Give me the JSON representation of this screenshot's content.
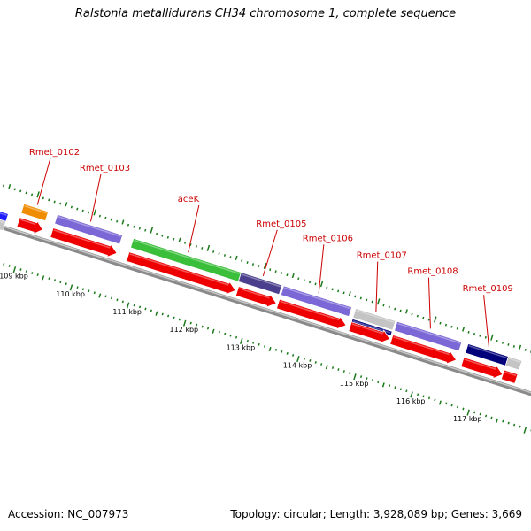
{
  "title": "Ralstonia metallidurans CH34 chromosome 1, complete sequence",
  "footer": {
    "accession": "Accession: NC_007973",
    "summary": "Topology: circular; Length: 3,928,089 bp; Genes: 3,669"
  },
  "view": {
    "start_kbp": 108.55,
    "end_kbp": 117.45
  },
  "colors": {
    "backbone": "#8a8a8a",
    "backbone_light": "#c8c8c8",
    "gene_label": "#cc0000",
    "tick": "#1a7a1a",
    "cds": "#ee0000",
    "violet": "#7b68d6",
    "green": "#3bbf3b",
    "darkslate": "#4a3f8c",
    "navy": "#00007a",
    "orange": "#f08c00",
    "grey": "#c4c4c4",
    "blue": "#1d1dff"
  },
  "kbp_labels": [
    "109 kbp",
    "110 kbp",
    "111 kbp",
    "112 kbp",
    "113 kbp",
    "114 kbp",
    "115 kbp",
    "116 kbp",
    "117 kbp"
  ],
  "kbp_values": [
    109,
    110,
    111,
    112,
    113,
    114,
    115,
    116,
    117
  ],
  "genes": [
    {
      "label": "Rmet_0102",
      "start": 108.82,
      "end": 109.25,
      "anchor": 109.04,
      "label_kbp": 108.93
    },
    {
      "label": "Rmet_0103",
      "start": 109.41,
      "end": 110.56,
      "anchor": 109.98,
      "label_kbp": 109.82
    },
    {
      "label": "aceK",
      "start": 110.75,
      "end": 112.65,
      "anchor": 111.7,
      "label_kbp": 111.55
    },
    {
      "label": "Rmet_0105",
      "start": 112.68,
      "end": 113.37,
      "anchor": 113.02,
      "label_kbp": 112.93
    },
    {
      "label": "Rmet_0106",
      "start": 113.4,
      "end": 114.6,
      "anchor": 114.0,
      "label_kbp": 113.75
    },
    {
      "label": "Rmet_0107",
      "start": 114.67,
      "end": 115.37,
      "anchor": 115.01,
      "label_kbp": 114.7
    },
    {
      "label": "Rmet_0108",
      "start": 115.4,
      "end": 116.54,
      "anchor": 115.97,
      "label_kbp": 115.6
    },
    {
      "label": "Rmet_0109",
      "start": 116.65,
      "end": 117.36,
      "anchor": 117.0,
      "label_kbp": 116.57
    }
  ],
  "features": [
    {
      "start": 108.4,
      "end": 108.62,
      "strand": 1,
      "color": "blue"
    },
    {
      "start": 108.4,
      "end": 108.62,
      "strand": 0,
      "color": "grey"
    },
    {
      "start": 108.82,
      "end": 109.25,
      "strand": 2,
      "color": "orange"
    },
    {
      "start": 108.82,
      "end": 109.25,
      "strand": 1,
      "color": "cds",
      "arrow": true
    },
    {
      "start": 109.41,
      "end": 110.56,
      "strand": 2,
      "color": "violet"
    },
    {
      "start": 109.41,
      "end": 110.56,
      "strand": 1,
      "color": "cds",
      "arrow": true
    },
    {
      "start": 110.75,
      "end": 112.65,
      "strand": 2,
      "color": "green"
    },
    {
      "start": 110.75,
      "end": 112.65,
      "strand": 1,
      "color": "cds",
      "arrow": true
    },
    {
      "start": 112.65,
      "end": 113.37,
      "strand": 2,
      "color": "darkslate"
    },
    {
      "start": 112.68,
      "end": 113.37,
      "strand": 1,
      "color": "cds",
      "arrow": true
    },
    {
      "start": 113.4,
      "end": 114.6,
      "strand": 2,
      "color": "violet"
    },
    {
      "start": 113.4,
      "end": 114.6,
      "strand": 1,
      "color": "cds",
      "arrow": true
    },
    {
      "start": 114.67,
      "end": 115.37,
      "strand": 2,
      "color": "grey"
    },
    {
      "start": 114.67,
      "end": 115.37,
      "strand": 2.55,
      "color": "navy",
      "thin": true
    },
    {
      "start": 114.67,
      "end": 115.37,
      "strand": 1,
      "color": "cds",
      "arrow": true
    },
    {
      "start": 115.4,
      "end": 116.54,
      "strand": 2,
      "color": "violet"
    },
    {
      "start": 115.4,
      "end": 116.54,
      "strand": 1,
      "color": "cds",
      "arrow": true
    },
    {
      "start": 116.65,
      "end": 117.36,
      "strand": 2,
      "color": "navy"
    },
    {
      "start": 116.65,
      "end": 117.36,
      "strand": 1,
      "color": "cds",
      "arrow": true
    },
    {
      "start": 117.36,
      "end": 117.6,
      "strand": 2,
      "color": "grey"
    },
    {
      "start": 117.36,
      "end": 117.6,
      "strand": 1,
      "color": "cds"
    }
  ]
}
